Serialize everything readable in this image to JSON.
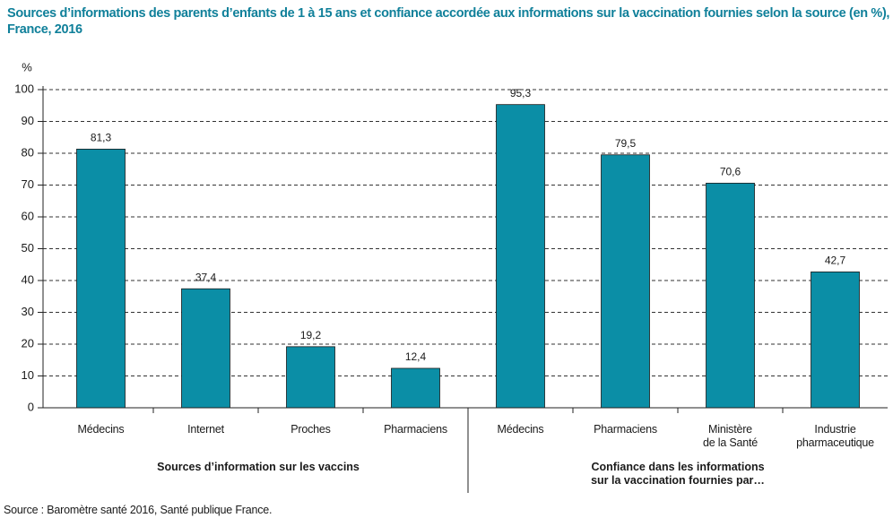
{
  "chart_data": {
    "type": "bar",
    "title": "Sources d’informations des parents d’enfants de 1 à 15 ans et confiance accordée aux informations sur la vaccination fournies selon la source (en %), France, 2016",
    "y_label": "%",
    "categories": [
      "Médecins",
      "Internet",
      "Proches",
      "Pharmaciens",
      "Médecins",
      "Pharmaciens",
      "Ministère\nde la Santé",
      "Industrie\npharmaceutique"
    ],
    "groups": [
      "Sources d’information sur les vaccins",
      "Confiance dans les informations\nsur la vaccination fournies par…"
    ],
    "values": [
      81.3,
      37.4,
      19.2,
      12.4,
      95.3,
      79.5,
      70.6,
      42.7
    ],
    "value_labels": [
      "81,3",
      "37,4",
      "19,2",
      "12,4",
      "95,3",
      "79,5",
      "70,6",
      "42,7"
    ],
    "color": "#0b8ea6",
    "ylim": [
      0,
      100
    ],
    "yticks": [
      0,
      10,
      20,
      30,
      40,
      50,
      60,
      70,
      80,
      90,
      100
    ],
    "grid": true,
    "source": "Source : Baromètre santé 2016, Santé publique France."
  }
}
